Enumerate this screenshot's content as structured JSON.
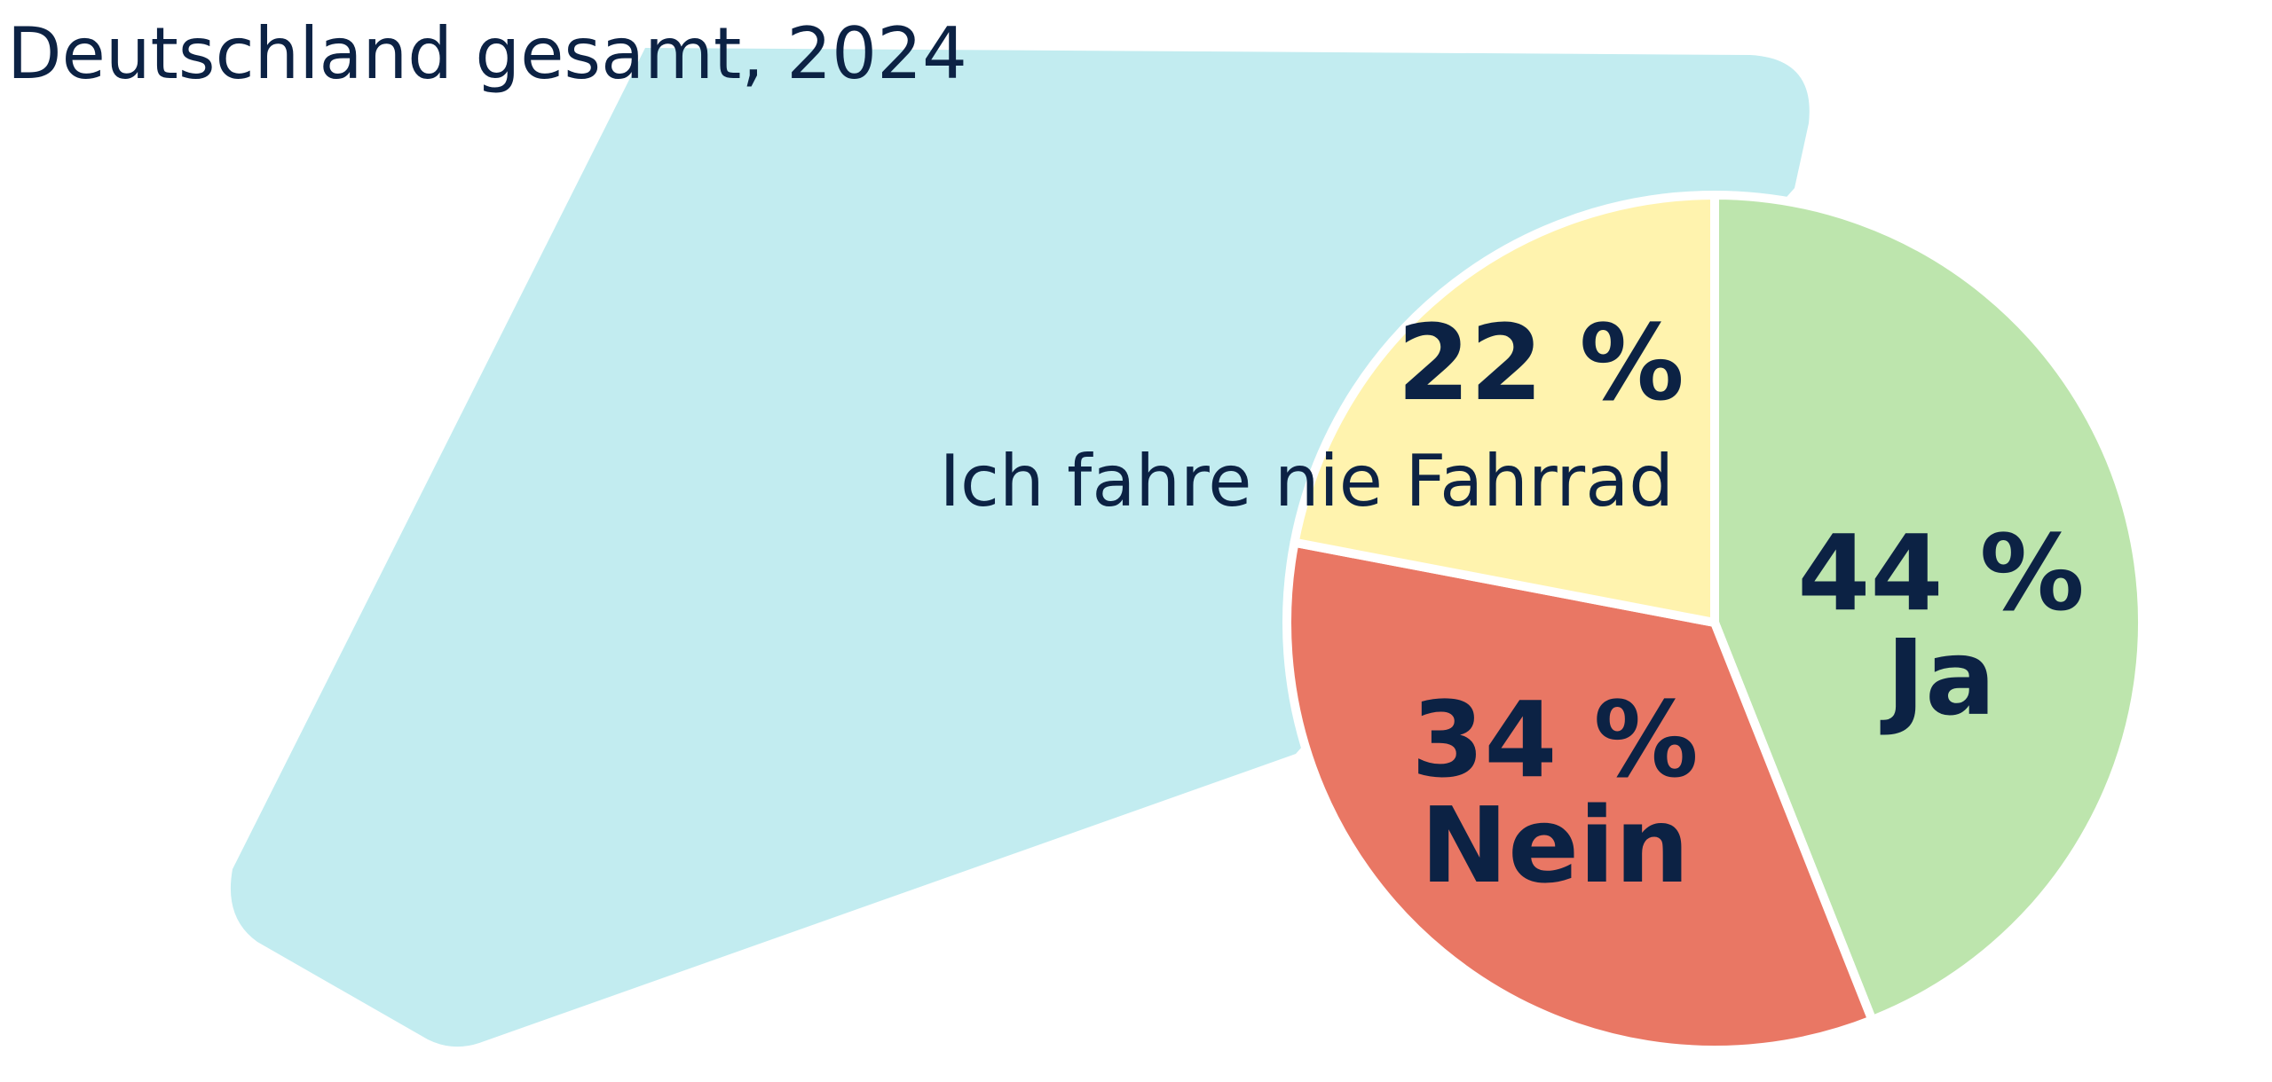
{
  "chart_data": {
    "type": "pie",
    "title": "Deutschland gesamt, 2024",
    "categories": [
      "Ja",
      "Nein",
      "Ich fahre nie Fahrrad"
    ],
    "values": [
      44,
      34,
      22
    ],
    "value_labels": [
      "44 %",
      "34 %",
      "22 %"
    ],
    "colors": [
      "#bde5ad",
      "#e97764",
      "#fff3ae"
    ]
  }
}
